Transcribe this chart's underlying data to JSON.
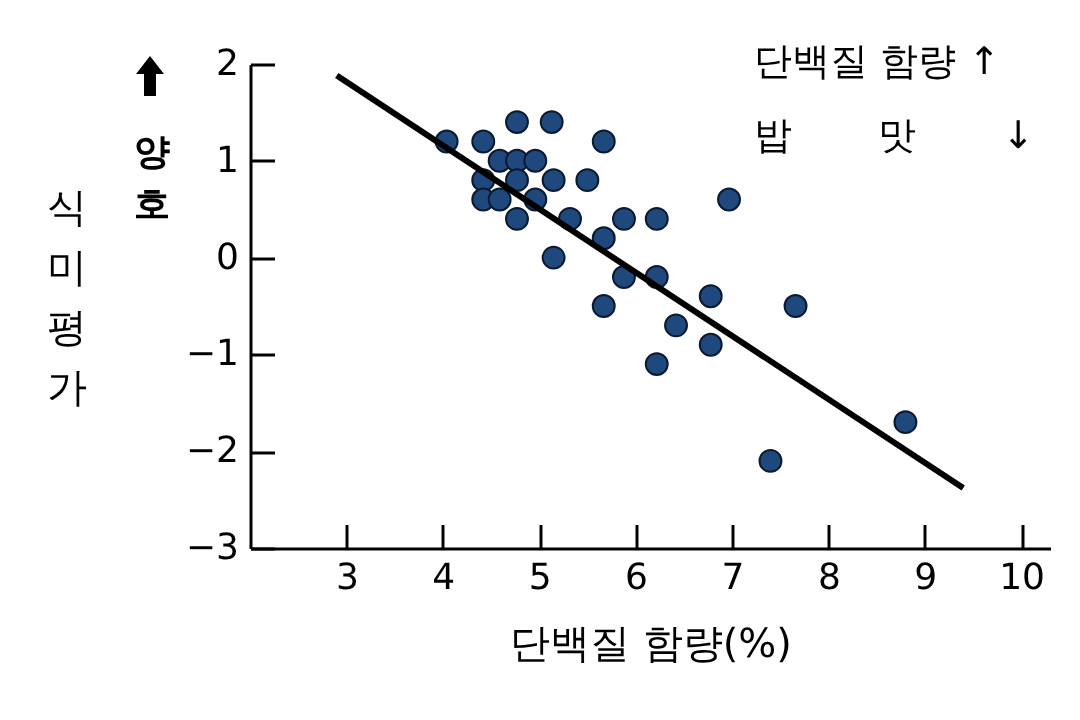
{
  "chart_data": {
    "type": "scatter",
    "xlabel": "단백질 함량(%)",
    "ylabel": "식미평가",
    "annotations": [
      "양호",
      "단백질 함량 ↑",
      "밥 맛 ↓"
    ],
    "xlim": [
      2,
      10.3
    ],
    "ylim": [
      -3,
      2
    ],
    "xticks": [
      3,
      4,
      5,
      6,
      7,
      8,
      9,
      10
    ],
    "yticks": [
      {
        "value": -3,
        "label": "−3"
      },
      {
        "value": -2,
        "label": "−2"
      },
      {
        "value": -1,
        "label": "−1"
      },
      0,
      1,
      2
    ],
    "grid": false,
    "series": [
      {
        "marker": "circle",
        "color": "#1f497d",
        "x": [
          4.77,
          5.13,
          4.04,
          4.42,
          5.67,
          4.59,
          4.77,
          4.96,
          4.42,
          4.77,
          5.15,
          5.5,
          4.42,
          4.59,
          4.96,
          6.97,
          4.77,
          5.32,
          5.88,
          6.22,
          5.67,
          5.15,
          5.88,
          6.22,
          6.78,
          5.67,
          7.66,
          6.42,
          6.78,
          6.22,
          8.8,
          7.4
        ],
        "values": [
          1.4,
          1.4,
          1.2,
          1.2,
          1.2,
          1.0,
          1.0,
          1.0,
          0.8,
          0.8,
          0.8,
          0.8,
          0.6,
          0.6,
          0.6,
          0.6,
          0.4,
          0.4,
          0.4,
          0.4,
          0.2,
          0,
          -0.2,
          -0.2,
          -0.4,
          -0.5,
          -0.5,
          -0.7,
          -0.9,
          -1.1,
          -1.7,
          -2.1
        ]
      },
      {
        "type": "line",
        "marker": "none",
        "color": "#000000",
        "x": [
          2.9,
          9.4
        ],
        "values": [
          1.88,
          -2.38
        ]
      }
    ]
  }
}
